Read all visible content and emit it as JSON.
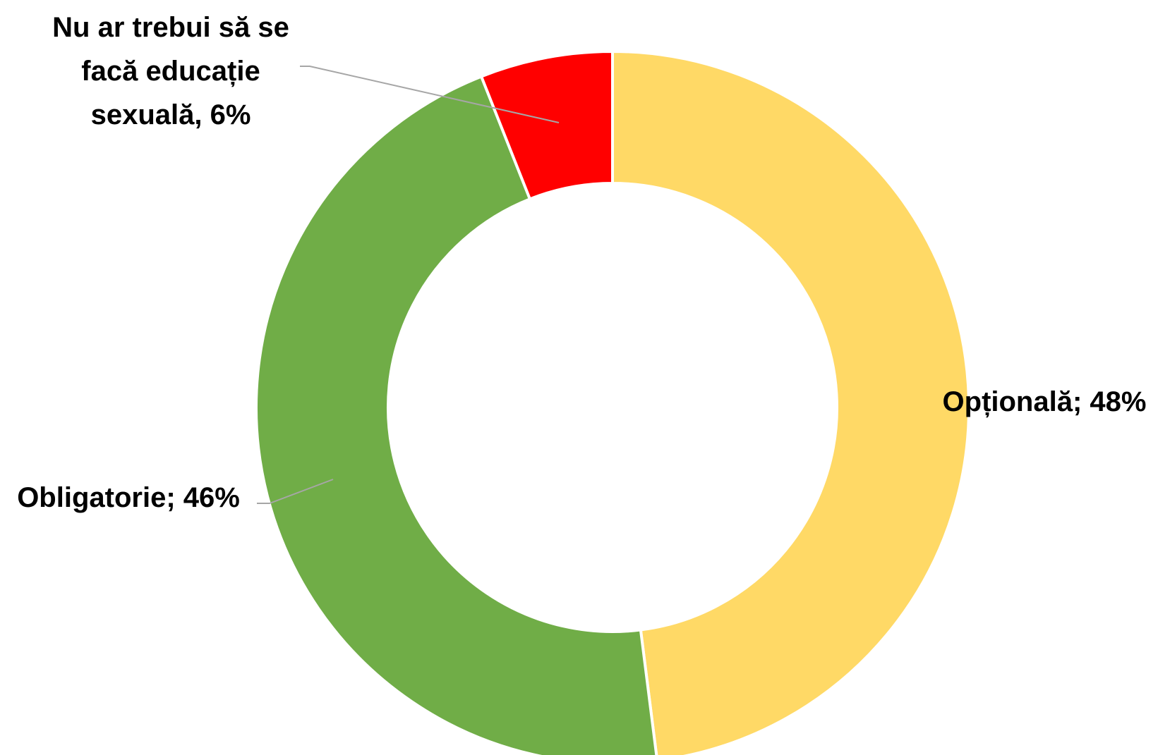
{
  "chart_data": {
    "type": "pie",
    "variant": "doughnut",
    "categories": [
      "Opțională",
      "Obligatorie",
      "Nu ar trebui să se facă educație sexuală"
    ],
    "values": [
      48,
      46,
      6
    ],
    "unit": "%",
    "colors": [
      "#FFD966",
      "#70AD47",
      "#FF0000"
    ],
    "data_labels": [
      [
        "Opțională; 48%"
      ],
      [
        "Obligatorie; 46%"
      ],
      [
        "Nu ar trebui să se",
        "facă educație",
        "sexuală, 6%"
      ]
    ],
    "legend": "none",
    "title": ""
  }
}
